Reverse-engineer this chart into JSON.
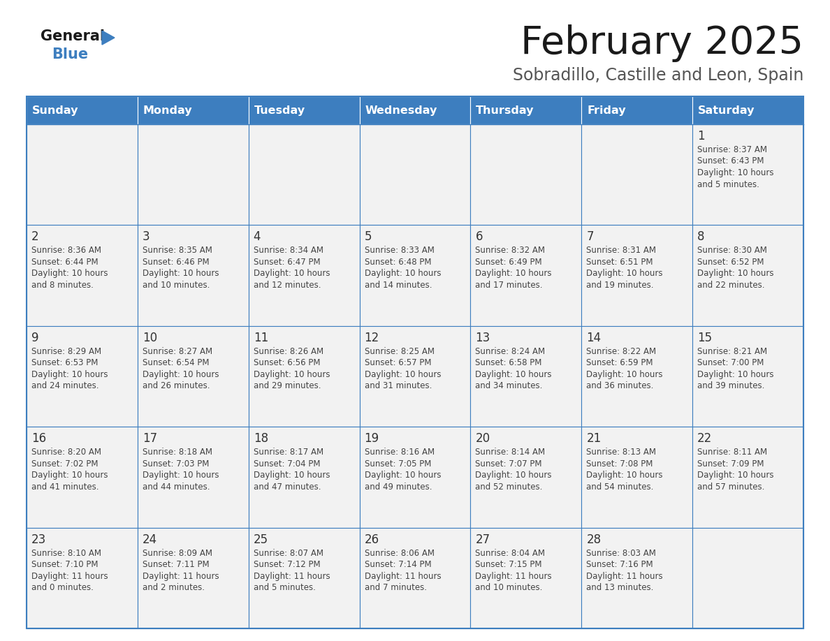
{
  "title": "February 2025",
  "subtitle": "Sobradillo, Castille and Leon, Spain",
  "header_color": "#3d7ebf",
  "header_text_color": "#ffffff",
  "cell_bg_color": "#f2f2f2",
  "border_color": "#3d7ebf",
  "text_color": "#333333",
  "info_text_color": "#444444",
  "days_of_week": [
    "Sunday",
    "Monday",
    "Tuesday",
    "Wednesday",
    "Thursday",
    "Friday",
    "Saturday"
  ],
  "weeks": [
    [
      {
        "day": null,
        "info": null
      },
      {
        "day": null,
        "info": null
      },
      {
        "day": null,
        "info": null
      },
      {
        "day": null,
        "info": null
      },
      {
        "day": null,
        "info": null
      },
      {
        "day": null,
        "info": null
      },
      {
        "day": 1,
        "info": "Sunrise: 8:37 AM\nSunset: 6:43 PM\nDaylight: 10 hours\nand 5 minutes."
      }
    ],
    [
      {
        "day": 2,
        "info": "Sunrise: 8:36 AM\nSunset: 6:44 PM\nDaylight: 10 hours\nand 8 minutes."
      },
      {
        "day": 3,
        "info": "Sunrise: 8:35 AM\nSunset: 6:46 PM\nDaylight: 10 hours\nand 10 minutes."
      },
      {
        "day": 4,
        "info": "Sunrise: 8:34 AM\nSunset: 6:47 PM\nDaylight: 10 hours\nand 12 minutes."
      },
      {
        "day": 5,
        "info": "Sunrise: 8:33 AM\nSunset: 6:48 PM\nDaylight: 10 hours\nand 14 minutes."
      },
      {
        "day": 6,
        "info": "Sunrise: 8:32 AM\nSunset: 6:49 PM\nDaylight: 10 hours\nand 17 minutes."
      },
      {
        "day": 7,
        "info": "Sunrise: 8:31 AM\nSunset: 6:51 PM\nDaylight: 10 hours\nand 19 minutes."
      },
      {
        "day": 8,
        "info": "Sunrise: 8:30 AM\nSunset: 6:52 PM\nDaylight: 10 hours\nand 22 minutes."
      }
    ],
    [
      {
        "day": 9,
        "info": "Sunrise: 8:29 AM\nSunset: 6:53 PM\nDaylight: 10 hours\nand 24 minutes."
      },
      {
        "day": 10,
        "info": "Sunrise: 8:27 AM\nSunset: 6:54 PM\nDaylight: 10 hours\nand 26 minutes."
      },
      {
        "day": 11,
        "info": "Sunrise: 8:26 AM\nSunset: 6:56 PM\nDaylight: 10 hours\nand 29 minutes."
      },
      {
        "day": 12,
        "info": "Sunrise: 8:25 AM\nSunset: 6:57 PM\nDaylight: 10 hours\nand 31 minutes."
      },
      {
        "day": 13,
        "info": "Sunrise: 8:24 AM\nSunset: 6:58 PM\nDaylight: 10 hours\nand 34 minutes."
      },
      {
        "day": 14,
        "info": "Sunrise: 8:22 AM\nSunset: 6:59 PM\nDaylight: 10 hours\nand 36 minutes."
      },
      {
        "day": 15,
        "info": "Sunrise: 8:21 AM\nSunset: 7:00 PM\nDaylight: 10 hours\nand 39 minutes."
      }
    ],
    [
      {
        "day": 16,
        "info": "Sunrise: 8:20 AM\nSunset: 7:02 PM\nDaylight: 10 hours\nand 41 minutes."
      },
      {
        "day": 17,
        "info": "Sunrise: 8:18 AM\nSunset: 7:03 PM\nDaylight: 10 hours\nand 44 minutes."
      },
      {
        "day": 18,
        "info": "Sunrise: 8:17 AM\nSunset: 7:04 PM\nDaylight: 10 hours\nand 47 minutes."
      },
      {
        "day": 19,
        "info": "Sunrise: 8:16 AM\nSunset: 7:05 PM\nDaylight: 10 hours\nand 49 minutes."
      },
      {
        "day": 20,
        "info": "Sunrise: 8:14 AM\nSunset: 7:07 PM\nDaylight: 10 hours\nand 52 minutes."
      },
      {
        "day": 21,
        "info": "Sunrise: 8:13 AM\nSunset: 7:08 PM\nDaylight: 10 hours\nand 54 minutes."
      },
      {
        "day": 22,
        "info": "Sunrise: 8:11 AM\nSunset: 7:09 PM\nDaylight: 10 hours\nand 57 minutes."
      }
    ],
    [
      {
        "day": 23,
        "info": "Sunrise: 8:10 AM\nSunset: 7:10 PM\nDaylight: 11 hours\nand 0 minutes."
      },
      {
        "day": 24,
        "info": "Sunrise: 8:09 AM\nSunset: 7:11 PM\nDaylight: 11 hours\nand 2 minutes."
      },
      {
        "day": 25,
        "info": "Sunrise: 8:07 AM\nSunset: 7:12 PM\nDaylight: 11 hours\nand 5 minutes."
      },
      {
        "day": 26,
        "info": "Sunrise: 8:06 AM\nSunset: 7:14 PM\nDaylight: 11 hours\nand 7 minutes."
      },
      {
        "day": 27,
        "info": "Sunrise: 8:04 AM\nSunset: 7:15 PM\nDaylight: 11 hours\nand 10 minutes."
      },
      {
        "day": 28,
        "info": "Sunrise: 8:03 AM\nSunset: 7:16 PM\nDaylight: 11 hours\nand 13 minutes."
      },
      {
        "day": null,
        "info": null
      }
    ]
  ],
  "logo_general_color": "#1a1a1a",
  "logo_blue_color": "#3d7ebf",
  "logo_triangle_color": "#3d7ebf",
  "title_color": "#1a1a1a",
  "subtitle_color": "#555555",
  "figsize": [
    11.88,
    9.18
  ],
  "dpi": 100
}
